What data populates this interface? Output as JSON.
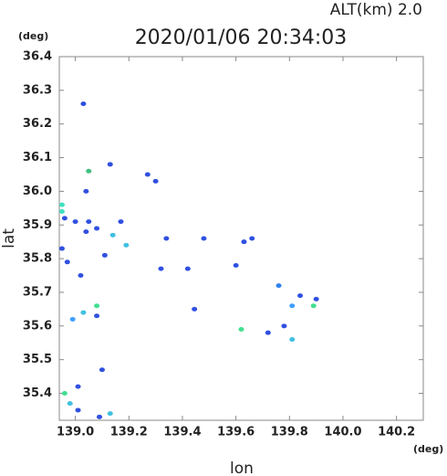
{
  "chart_data": {
    "type": "scatter",
    "title": "2020/01/06 20:34:03",
    "subtitle": "ALT(km)  2.0",
    "x_label": "lon",
    "y_label": "lat",
    "x_unit": "(deg)",
    "y_unit": "(deg)",
    "xlim": [
      138.94,
      140.3
    ],
    "ylim": [
      35.32,
      36.4
    ],
    "xticks": [
      {
        "value": 139,
        "label": "139.0"
      },
      139.2,
      139.4,
      139.6,
      139.8,
      {
        "value": 140,
        "label": "140.0"
      },
      140.2
    ],
    "yticks": [
      35.4,
      35.5,
      35.6,
      35.7,
      35.8,
      35.9,
      {
        "value": 36,
        "label": "36.0"
      },
      36.1,
      36.2,
      36.3,
      36.4
    ],
    "x": [
      139.03,
      139.13,
      139.05,
      139.04,
      138.95,
      138.96,
      139.0,
      139.05,
      139.08,
      139.04,
      139.17,
      139.19,
      139.11,
      138.97,
      139.02,
      139.32,
      139.42,
      139.445,
      139.6,
      139.63,
      139.76,
      139.84,
      139.9,
      139.81,
      139.78,
      139.72,
      139.81,
      139.62,
      139.03,
      139.08,
      139.08,
      138.99,
      139.1,
      139.01,
      138.96,
      138.98,
      139.01,
      139.09,
      139.13,
      139.27,
      139.3,
      139.34,
      139.48,
      139.66,
      138.95,
      139.14,
      139.89,
      138.95
    ],
    "y": [
      36.26,
      36.08,
      36.06,
      36.0,
      35.96,
      35.92,
      35.91,
      35.91,
      35.89,
      35.88,
      35.91,
      35.84,
      35.81,
      35.79,
      35.75,
      35.77,
      35.77,
      35.65,
      35.78,
      35.85,
      35.72,
      35.69,
      35.68,
      35.66,
      35.6,
      35.58,
      35.56,
      35.59,
      35.64,
      35.66,
      35.63,
      35.62,
      35.47,
      35.42,
      35.4,
      35.37,
      35.35,
      35.33,
      35.34,
      36.05,
      36.03,
      35.86,
      35.86,
      35.86,
      35.83,
      35.87,
      35.66,
      35.94
    ],
    "colors": [
      "#3050e0",
      "#3050e0",
      "#40c080",
      "#3050e0",
      "#40e0c0",
      "#3050e0",
      "#3050e0",
      "#3050e0",
      "#3050e0",
      "#3050e0",
      "#3050e0",
      "#40c0e0",
      "#3050e0",
      "#3050e0",
      "#3050e0",
      "#3050e0",
      "#3050e0",
      "#3050e0",
      "#3050e0",
      "#3050e0",
      "#3080f0",
      "#3050e0",
      "#3050e0",
      "#40a0ff",
      "#3050e0",
      "#3050e0",
      "#40c0e0",
      "#40e090",
      "#40c0e0",
      "#40e090",
      "#3050e0",
      "#40a0ff",
      "#3050e0",
      "#3050e0",
      "#40e090",
      "#40c0e0",
      "#3050e0",
      "#3050e0",
      "#40c0e0",
      "#3050e0",
      "#3050e0",
      "#3050e0",
      "#3050e0",
      "#3050e0",
      "#3050e0",
      "#40c0e0",
      "#40e090",
      "#40e0c0"
    ]
  }
}
